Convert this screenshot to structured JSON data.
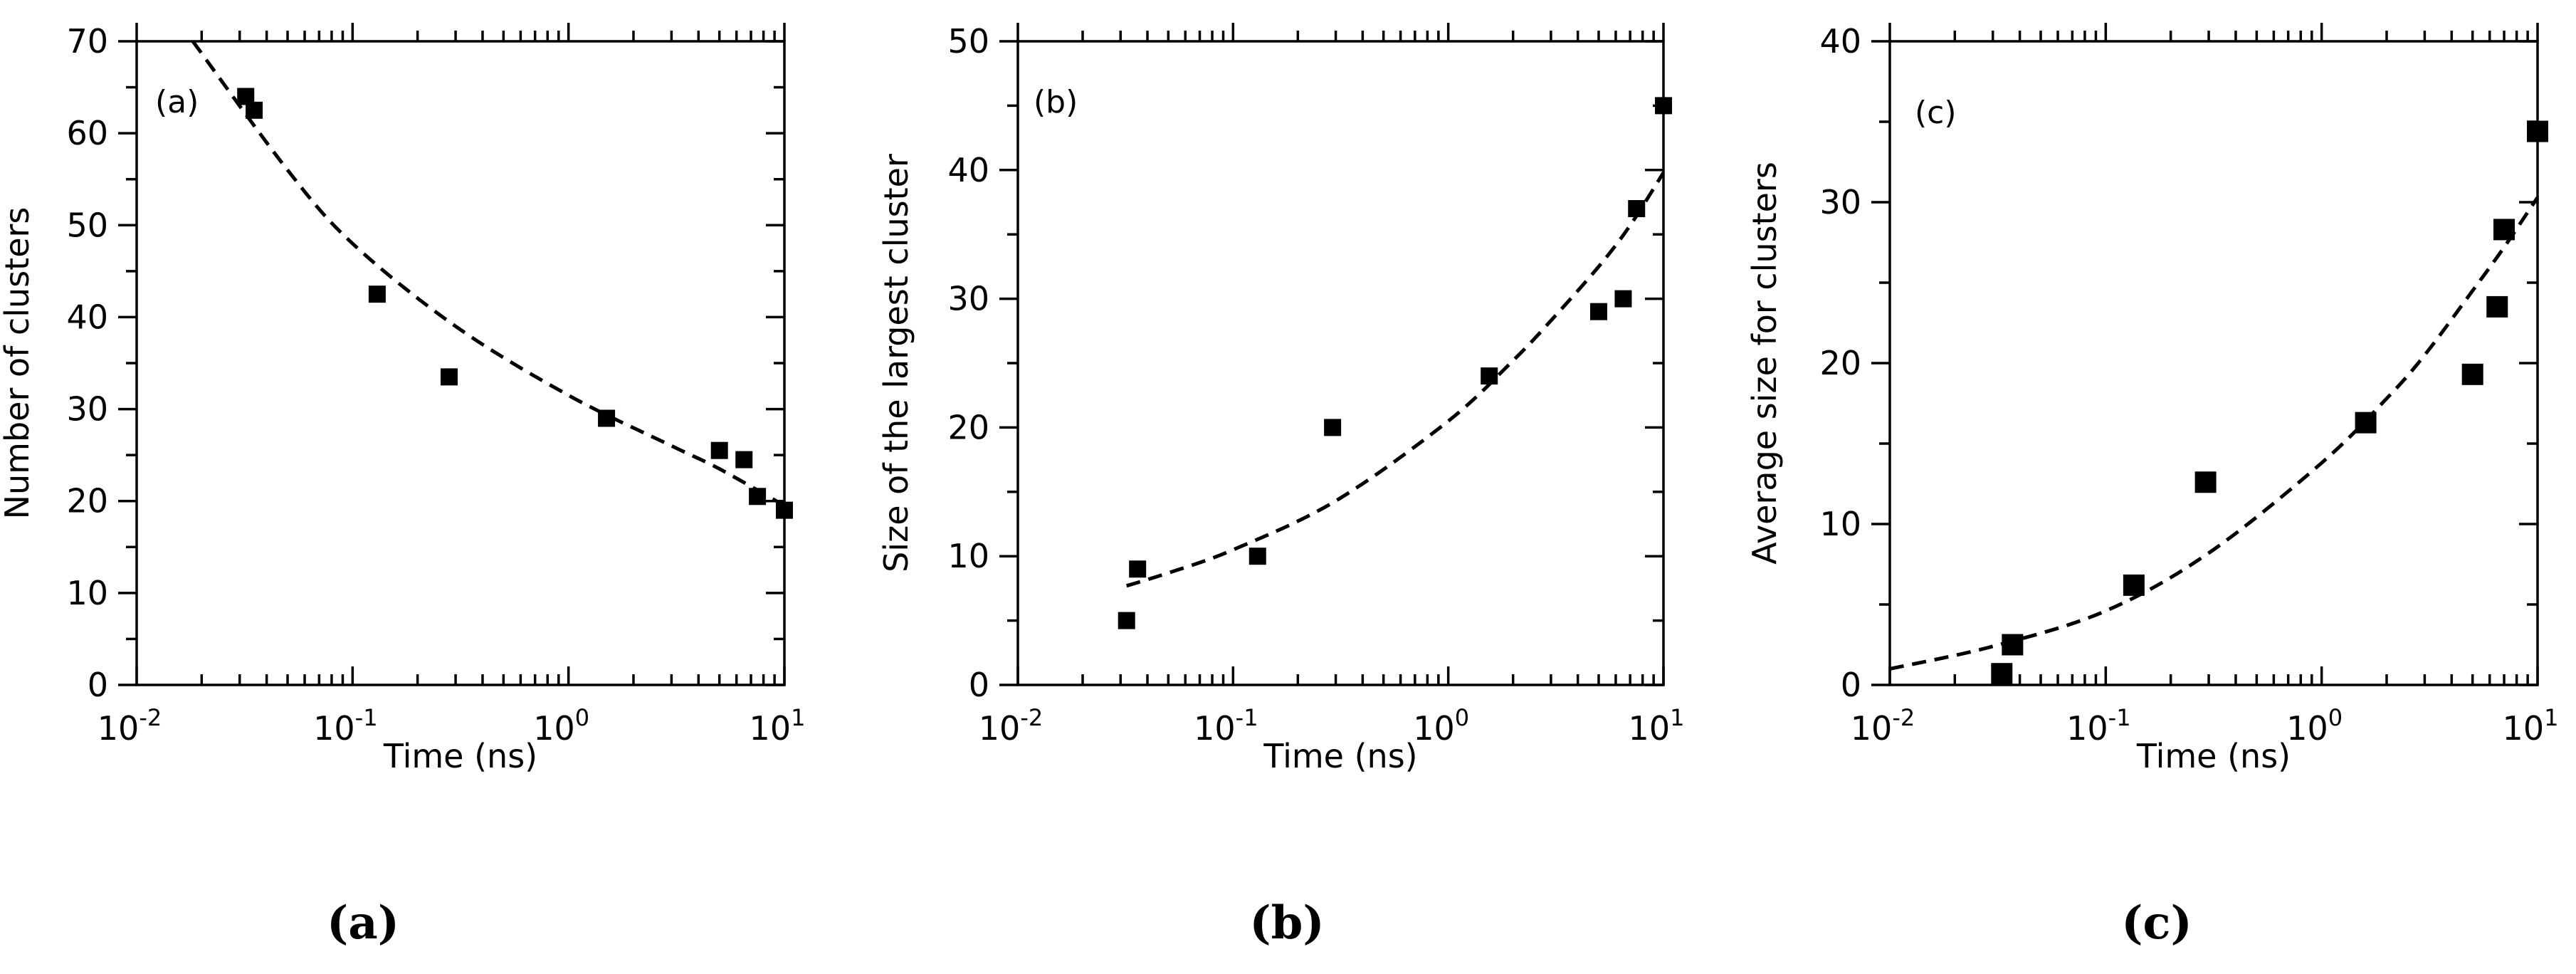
{
  "chart_data": [
    {
      "type": "scatter",
      "panel_label": "(a)",
      "caption": "(a)",
      "xlabel": "Time (ns)",
      "ylabel": "Number of clusters",
      "xscale": "log",
      "xlim": [
        0.01,
        10
      ],
      "ylim": [
        0,
        70
      ],
      "yticks": [
        0,
        10,
        20,
        30,
        40,
        50,
        60,
        70
      ],
      "xtick_labels": [
        {
          "base": "10",
          "exp": "-2"
        },
        {
          "base": "10",
          "exp": "-1"
        },
        {
          "base": "10",
          "exp": "0"
        },
        {
          "base": "10",
          "exp": "1"
        }
      ],
      "points": [
        {
          "x": 0.032,
          "y": 64
        },
        {
          "x": 0.035,
          "y": 62.5
        },
        {
          "x": 0.13,
          "y": 42.5
        },
        {
          "x": 0.28,
          "y": 33.5
        },
        {
          "x": 1.5,
          "y": 29
        },
        {
          "x": 5,
          "y": 25.5
        },
        {
          "x": 6.5,
          "y": 24.5
        },
        {
          "x": 7.5,
          "y": 20.5
        },
        {
          "x": 10,
          "y": 19
        }
      ],
      "marker_size": "small",
      "fit": {
        "style": "dashed",
        "x_range": [
          0.0182,
          10
        ],
        "points": [
          {
            "x": 0.0182,
            "y": 70
          },
          {
            "x": 0.05,
            "y": 56
          },
          {
            "x": 0.1,
            "y": 48
          },
          {
            "x": 0.3,
            "y": 39
          },
          {
            "x": 1,
            "y": 31.5
          },
          {
            "x": 3,
            "y": 26
          },
          {
            "x": 5,
            "y": 23.5
          },
          {
            "x": 10,
            "y": 19.5
          }
        ]
      }
    },
    {
      "type": "scatter",
      "panel_label": "(b)",
      "caption": "(b)",
      "xlabel": "Time (ns)",
      "ylabel": "Size of the largest cluster",
      "xscale": "log",
      "xlim": [
        0.01,
        10
      ],
      "ylim": [
        0,
        50
      ],
      "yticks": [
        0,
        10,
        20,
        30,
        40,
        50
      ],
      "xtick_labels": [
        {
          "base": "10",
          "exp": "-2"
        },
        {
          "base": "10",
          "exp": "-1"
        },
        {
          "base": "10",
          "exp": "0"
        },
        {
          "base": "10",
          "exp": "1"
        }
      ],
      "points": [
        {
          "x": 0.032,
          "y": 5
        },
        {
          "x": 0.036,
          "y": 9
        },
        {
          "x": 0.13,
          "y": 10
        },
        {
          "x": 0.29,
          "y": 20
        },
        {
          "x": 1.55,
          "y": 24
        },
        {
          "x": 5,
          "y": 29
        },
        {
          "x": 6.5,
          "y": 30
        },
        {
          "x": 7.5,
          "y": 37
        },
        {
          "x": 10,
          "y": 45
        }
      ],
      "marker_size": "small",
      "fit": {
        "style": "dashed",
        "x_range": [
          0.032,
          10
        ],
        "points": [
          {
            "x": 0.032,
            "y": 7.7
          },
          {
            "x": 0.05,
            "y": 8.7
          },
          {
            "x": 0.1,
            "y": 10.5
          },
          {
            "x": 0.3,
            "y": 14.3
          },
          {
            "x": 1,
            "y": 20.5
          },
          {
            "x": 2,
            "y": 25.2
          },
          {
            "x": 3,
            "y": 28.3
          },
          {
            "x": 5,
            "y": 32.5
          },
          {
            "x": 7,
            "y": 35.7
          },
          {
            "x": 10,
            "y": 39.8
          }
        ]
      }
    },
    {
      "type": "scatter",
      "panel_label": "(c)",
      "caption": "(c)",
      "xlabel": "Time (ns)",
      "ylabel": "Average size for clusters",
      "xscale": "log",
      "xlim": [
        0.01,
        10
      ],
      "ylim": [
        0,
        40
      ],
      "yticks": [
        0,
        10,
        20,
        30,
        40
      ],
      "xtick_labels": [
        {
          "base": "10",
          "exp": "-2"
        },
        {
          "base": "10",
          "exp": "-1"
        },
        {
          "base": "10",
          "exp": "0"
        },
        {
          "base": "10",
          "exp": "1"
        }
      ],
      "points": [
        {
          "x": 0.033,
          "y": 0.7
        },
        {
          "x": 0.037,
          "y": 2.5
        },
        {
          "x": 0.135,
          "y": 6.2
        },
        {
          "x": 0.29,
          "y": 12.6
        },
        {
          "x": 1.6,
          "y": 16.3
        },
        {
          "x": 5,
          "y": 19.3
        },
        {
          "x": 6.5,
          "y": 23.5
        },
        {
          "x": 7,
          "y": 28.3
        },
        {
          "x": 10,
          "y": 34.4
        }
      ],
      "marker_size": "large",
      "fit": {
        "style": "dashed",
        "x_range": [
          0.01,
          10
        ],
        "points": [
          {
            "x": 0.01,
            "y": 1
          },
          {
            "x": 0.03,
            "y": 2.4
          },
          {
            "x": 0.1,
            "y": 4.6
          },
          {
            "x": 0.3,
            "y": 8.2
          },
          {
            "x": 1,
            "y": 13.8
          },
          {
            "x": 2,
            "y": 17.8
          },
          {
            "x": 3,
            "y": 20.5
          },
          {
            "x": 5,
            "y": 24.5
          },
          {
            "x": 7,
            "y": 27.2
          },
          {
            "x": 10,
            "y": 30.3
          }
        ]
      }
    }
  ]
}
